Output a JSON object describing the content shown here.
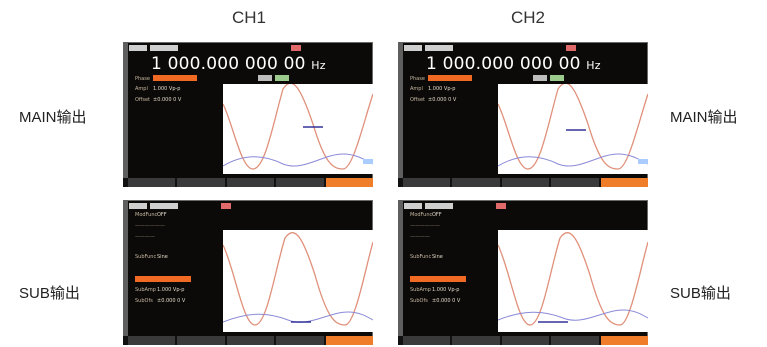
{
  "columns": {
    "ch1": "CH1",
    "ch2": "CH2"
  },
  "labels": {
    "main_left": "MAIN输出",
    "main_right": "MAIN输出",
    "sub_left": "SUB输出",
    "sub_right": "SUB输出"
  },
  "main_screen": {
    "frequency": "1 000.000 000 00",
    "frequency_unit": "Hz",
    "amplitude": "1.000 Vp-p",
    "offset": "±0.000 0 V",
    "phase_key": "Phase",
    "amplitude_key": "Ampl",
    "offset_key": "Offset"
  },
  "sub_screen": {
    "mod_func": "OFF",
    "amplitude": "1.000 Vp-p",
    "offset": "±0.000 0 V",
    "sub_func": "Sine",
    "mod_func_key": "ModFunc",
    "sub_func_key": "SubFunc",
    "amplitude_key": "SubAmp",
    "offset_key": "SubOfs"
  },
  "colors": {
    "screen_bg": "#0c0a08",
    "accent_orange": "#f06a24",
    "wave_main": "#e0907a",
    "wave_sub": "#8a8ad8"
  }
}
